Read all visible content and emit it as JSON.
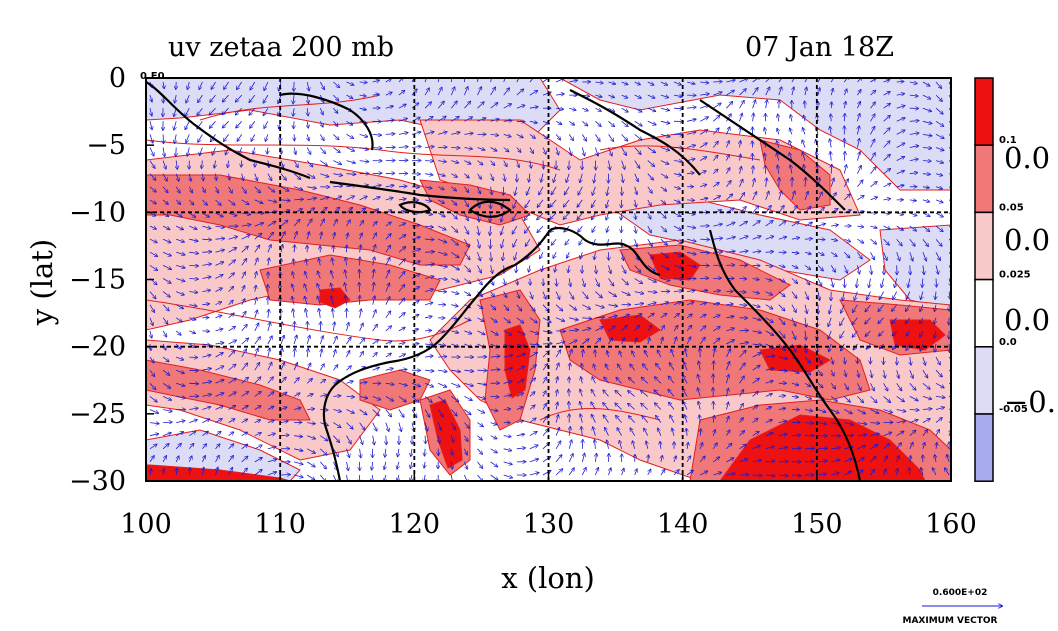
{
  "title_left": "uv zetaa 200 mb",
  "title_right": "07 Jan 18Z",
  "xlabel": "x (lon)",
  "ylabel": "y (lat)",
  "x_ticks": [
    "100",
    "110",
    "120",
    "130",
    "140",
    "150",
    "160"
  ],
  "y_ticks": [
    "0",
    "−5",
    "−10",
    "−15",
    "−20",
    "−25",
    "−30"
  ],
  "x_range": [
    100,
    160
  ],
  "y_range": [
    -30,
    0
  ],
  "grid_lon": [
    110,
    120,
    130,
    140,
    150
  ],
  "grid_lat": [
    -10,
    -20
  ],
  "colorbar": {
    "boxes": [
      {
        "color": "#ee1111"
      },
      {
        "color": "#f07878"
      },
      {
        "color": "#f9c8c8"
      },
      {
        "color": "#ffffff"
      },
      {
        "color": "#dcdcf6"
      },
      {
        "color": "#a8acee"
      }
    ],
    "small_labels": [
      "0.1",
      "0.05",
      "0.025",
      "0.0",
      "-0.05"
    ],
    "big_labels": [
      "0.0",
      "0.0",
      "0.0",
      "−0."
    ]
  },
  "corner_label": "0.E0",
  "max_vector": {
    "value": "0.600E+02",
    "label": "MAXIMUM VECTOR"
  },
  "colors": {
    "contour": "#e02020",
    "vector": "#1a1ad0",
    "coast": "#000000",
    "grid": "#000000"
  }
}
